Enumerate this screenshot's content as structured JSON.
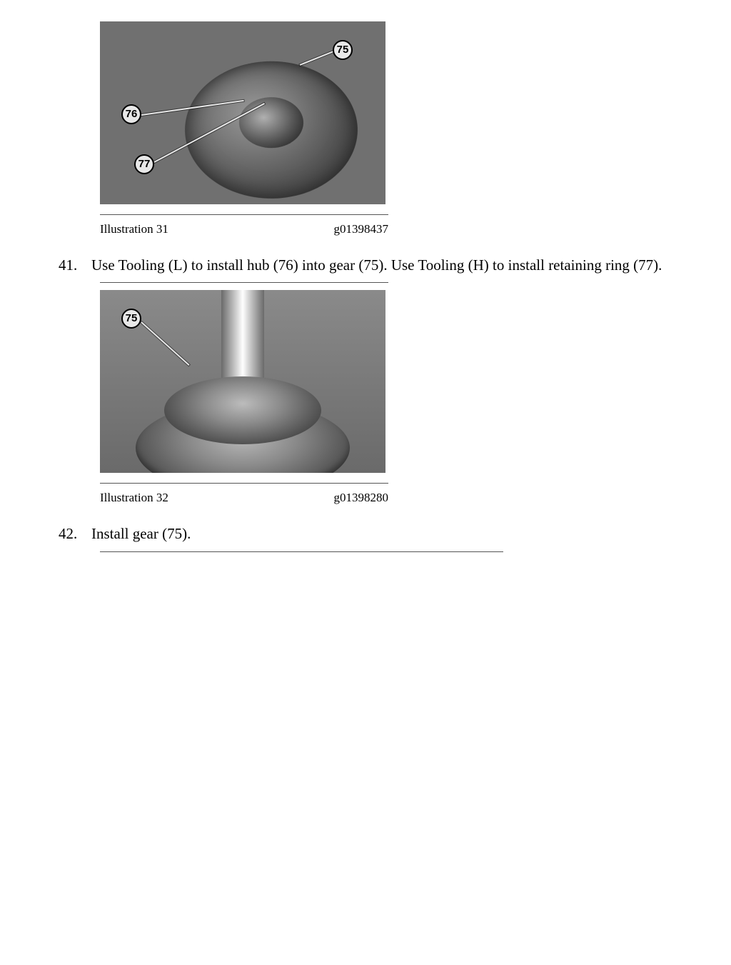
{
  "figure31": {
    "illustration_label": "Illustration 31",
    "code": "g01398437",
    "callouts": {
      "a": "75",
      "b": "76",
      "c": "77"
    }
  },
  "step41": {
    "number": "41.",
    "text": "Use Tooling (L) to install hub (76) into gear (75). Use Tooling (H) to install retaining ring (77)."
  },
  "figure32": {
    "illustration_label": "Illustration 32",
    "code": "g01398280",
    "callouts": {
      "a": "75"
    }
  },
  "step42": {
    "number": "42.",
    "text": "Install gear (75)."
  }
}
